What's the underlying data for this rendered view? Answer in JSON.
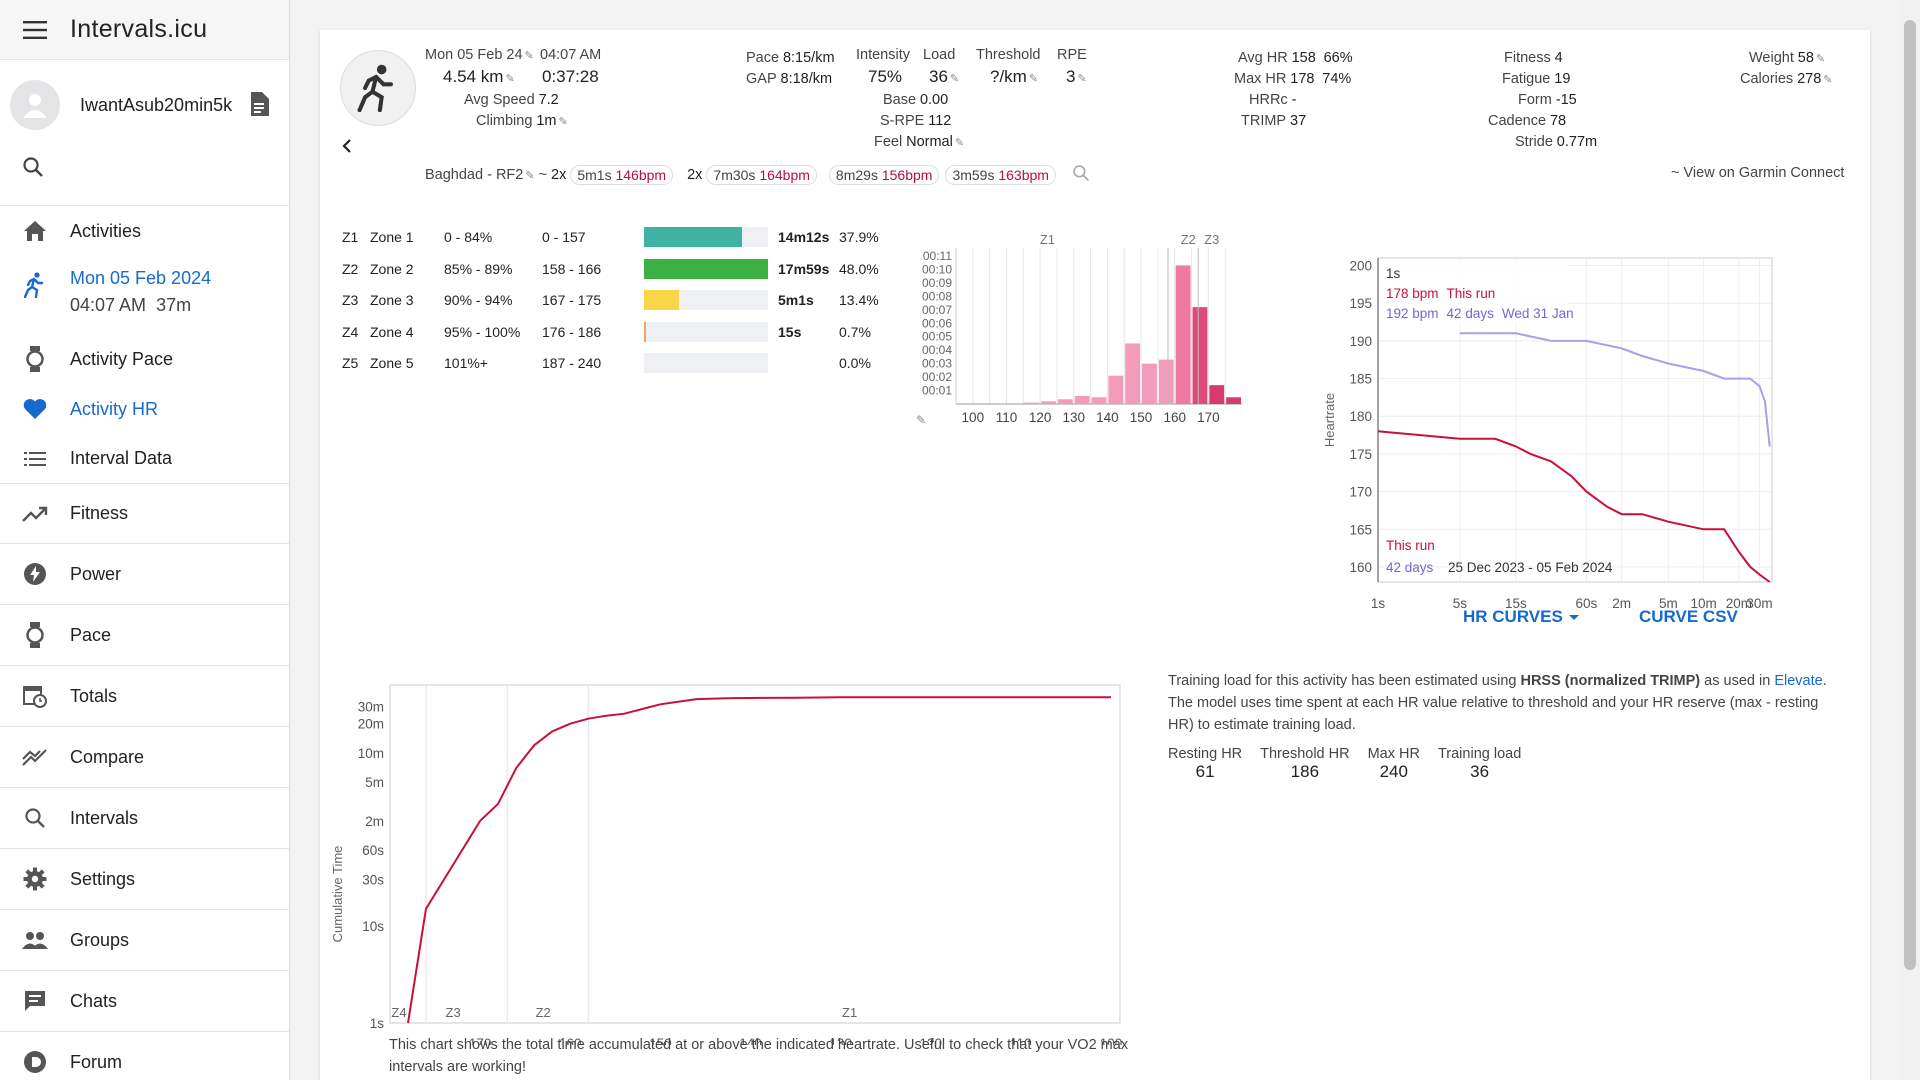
{
  "app": {
    "name": "Intervals.icu"
  },
  "user": {
    "name": "IwantAsub20min5k"
  },
  "nav": {
    "activities": "Activities",
    "current_date": "Mon 05 Feb 2024",
    "current_time": "04:07 AM",
    "current_duration": "37m",
    "activity_pace": "Activity Pace",
    "activity_hr": "Activity HR",
    "interval_data": "Interval Data",
    "fitness": "Fitness",
    "power": "Power",
    "pace": "Pace",
    "totals": "Totals",
    "compare": "Compare",
    "intervals": "Intervals",
    "settings": "Settings",
    "groups": "Groups",
    "chats": "Chats",
    "forum": "Forum"
  },
  "summary": {
    "date": "Mon 05 Feb 24",
    "time": "04:07 AM",
    "distance": "4.54 km",
    "duration": "0:37:28",
    "avg_speed_label": "Avg Speed",
    "avg_speed": "7.2",
    "climbing_label": "Climbing",
    "climbing": "1m",
    "pace_label": "Pace",
    "pace": "8:15/km",
    "gap_label": "GAP",
    "gap": "8:18/km",
    "intensity_label": "Intensity",
    "intensity": "75%",
    "load_label": "Load",
    "load": "36",
    "threshold_label": "Threshold",
    "threshold": "?/km",
    "rpe_label": "RPE",
    "rpe": "3",
    "base_label": "Base",
    "base": "0.00",
    "srpe_label": "S-RPE",
    "srpe": "112",
    "feel_label": "Feel",
    "feel": "Normal",
    "avg_hr_label": "Avg HR",
    "avg_hr": "158",
    "avg_hr_pct": "66%",
    "max_hr_label": "Max HR",
    "max_hr": "178",
    "max_hr_pct": "74%",
    "hrrc_label": "HRRc",
    "hrrc": "-",
    "trimp_label": "TRIMP",
    "trimp": "37",
    "fitness_label": "Fitness",
    "fitness": "4",
    "fatigue_label": "Fatigue",
    "fatigue": "19",
    "form_label": "Form",
    "form": "-15",
    "cadence_label": "Cadence",
    "cadence": "78",
    "stride_label": "Stride",
    "stride": "0.77m",
    "weight_label": "Weight",
    "weight": "58",
    "calories_label": "Calories",
    "calories": "278"
  },
  "intervals_bar": {
    "name": "Baghdad - RF2",
    "tilde": "~",
    "group1_mult": "2x",
    "group1_dur": "5m1s",
    "group1_bpm": "146bpm",
    "group2_mult": "2x",
    "group2_dur": "7m30s",
    "group2_bpm": "164bpm",
    "chip3_dur": "8m29s",
    "chip3_bpm": "156bpm",
    "chip4_dur": "3m59s",
    "chip4_bpm": "163bpm",
    "garmin": "~ View on Garmin Connect"
  },
  "zones": [
    {
      "id": "Z1",
      "name": "Zone 1",
      "pct": "0 - 84%",
      "range": "0 - 157",
      "time": "14m12s",
      "share": "37.9%",
      "fill": 0.79,
      "color": "#3fb3a1"
    },
    {
      "id": "Z2",
      "name": "Zone 2",
      "pct": "85% - 89%",
      "range": "158 - 166",
      "time": "17m59s",
      "share": "48.0%",
      "fill": 1.0,
      "color": "#3cb043"
    },
    {
      "id": "Z3",
      "name": "Zone 3",
      "pct": "90% - 94%",
      "range": "167 - 175",
      "time": "5m1s",
      "share": "13.4%",
      "fill": 0.28,
      "color": "#f9d54a"
    },
    {
      "id": "Z4",
      "name": "Zone 4",
      "pct": "95% - 100%",
      "range": "176 - 186",
      "time": "15s",
      "share": "0.7%",
      "fill": 0.015,
      "color": "#f4a460"
    },
    {
      "id": "Z5",
      "name": "Zone 5",
      "pct": "101%+",
      "range": "187 - 240",
      "time": "",
      "share": "0.0%",
      "fill": 0.0,
      "color": "#e05050"
    }
  ],
  "histogram": {
    "y_ticks": [
      "00:11",
      "00:10",
      "00:09",
      "00:08",
      "00:07",
      "00:06",
      "00:05",
      "00:04",
      "00:03",
      "00:02",
      "00:01"
    ],
    "x_ticks": [
      "100",
      "110",
      "120",
      "130",
      "140",
      "150",
      "160",
      "170"
    ],
    "zone_labels": [
      "Z1",
      "Z2",
      "Z3"
    ],
    "bins": [
      95,
      100,
      105,
      110,
      115,
      120,
      125,
      130,
      135,
      140,
      145,
      150,
      155,
      160,
      165,
      170,
      175
    ],
    "minutes": [
      0.05,
      0.05,
      0.05,
      0.05,
      0.1,
      0.2,
      0.35,
      0.6,
      0.5,
      2.1,
      4.5,
      3.0,
      3.3,
      10.3,
      7.2,
      1.4,
      0.5
    ]
  },
  "hr_curve": {
    "y_label": "Heartrate",
    "y_ticks": [
      "200",
      "195",
      "190",
      "185",
      "180",
      "175",
      "170",
      "165",
      "160"
    ],
    "x_ticks": [
      "1s",
      "5s",
      "15s",
      "60s",
      "2m",
      "5m",
      "10m",
      "20m",
      "30m"
    ],
    "top_duration": "1s",
    "this_run_bpm": "178 bpm",
    "this_run_label": "This run",
    "best_bpm": "192 bpm",
    "best_days": "42 days",
    "best_date": "Wed 31 Jan",
    "legend_this_run": "This run",
    "legend_days": "42 days",
    "legend_range": "25 Dec 2023 - 05 Feb 2024",
    "this_run_color": "#c8103c",
    "best_color": "#a8a0e8",
    "this_run_curve": [
      [
        1,
        178
      ],
      [
        5,
        177
      ],
      [
        10,
        177
      ],
      [
        15,
        176
      ],
      [
        20,
        175
      ],
      [
        30,
        174
      ],
      [
        45,
        172
      ],
      [
        60,
        170
      ],
      [
        90,
        168
      ],
      [
        120,
        167
      ],
      [
        180,
        167
      ],
      [
        300,
        166
      ],
      [
        600,
        165
      ],
      [
        900,
        165
      ],
      [
        1200,
        162
      ],
      [
        1500,
        160
      ],
      [
        1800,
        159
      ],
      [
        2200,
        158
      ]
    ],
    "best_curve": [
      [
        5,
        191
      ],
      [
        15,
        191
      ],
      [
        30,
        190
      ],
      [
        60,
        190
      ],
      [
        120,
        189
      ],
      [
        180,
        188
      ],
      [
        300,
        187
      ],
      [
        600,
        186
      ],
      [
        900,
        185
      ],
      [
        1500,
        185
      ],
      [
        1800,
        184
      ],
      [
        2000,
        182
      ],
      [
        2200,
        176
      ]
    ]
  },
  "curve_buttons": {
    "hr_curves": "HR CURVES",
    "curve_csv": "CURVE CSV"
  },
  "cumulative": {
    "y_label": "Cumulative Time",
    "y_ticks": [
      "30m",
      "20m",
      "10m",
      "5m",
      "2m",
      "60s",
      "30s",
      "10s",
      "1s"
    ],
    "x_ticks": [
      "170",
      "160",
      "150",
      "140",
      "130",
      "120",
      "110",
      "100"
    ],
    "zone_labels": [
      "Z4",
      "Z3",
      "Z2",
      "Z1"
    ],
    "line_color": "#c8103c",
    "points": [
      [
        178,
        1
      ],
      [
        176,
        15
      ],
      [
        174,
        30
      ],
      [
        172,
        60
      ],
      [
        170,
        120
      ],
      [
        168,
        180
      ],
      [
        166,
        420
      ],
      [
        164,
        720
      ],
      [
        162,
        1000
      ],
      [
        160,
        1200
      ],
      [
        158,
        1350
      ],
      [
        156,
        1450
      ],
      [
        154,
        1520
      ],
      [
        152,
        1700
      ],
      [
        150,
        1900
      ],
      [
        146,
        2150
      ],
      [
        142,
        2200
      ],
      [
        135,
        2220
      ],
      [
        130,
        2240
      ],
      [
        120,
        2245
      ],
      [
        110,
        2248
      ],
      [
        100,
        2248
      ]
    ],
    "caption": "This chart shows the total time accumulated at or above the indicated heartrate. Useful to check that your VO2 max intervals are working!"
  },
  "training_load": {
    "text_pre": "Training load for this activity has been estimated using",
    "text_bold": "HRSS (normalized TRIMP)",
    "text_mid": "as used in",
    "elevate": "Elevate",
    "text_post": "The model uses time spent at each HR value relative to threshold and your HR reserve (max - resting HR) to estimate training load.",
    "resting_hr_label": "Resting HR",
    "resting_hr": "61",
    "threshold_hr_label": "Threshold HR",
    "threshold_hr": "186",
    "max_hr_label": "Max HR",
    "max_hr": "240",
    "training_load_label": "Training load",
    "training_load": "36"
  }
}
